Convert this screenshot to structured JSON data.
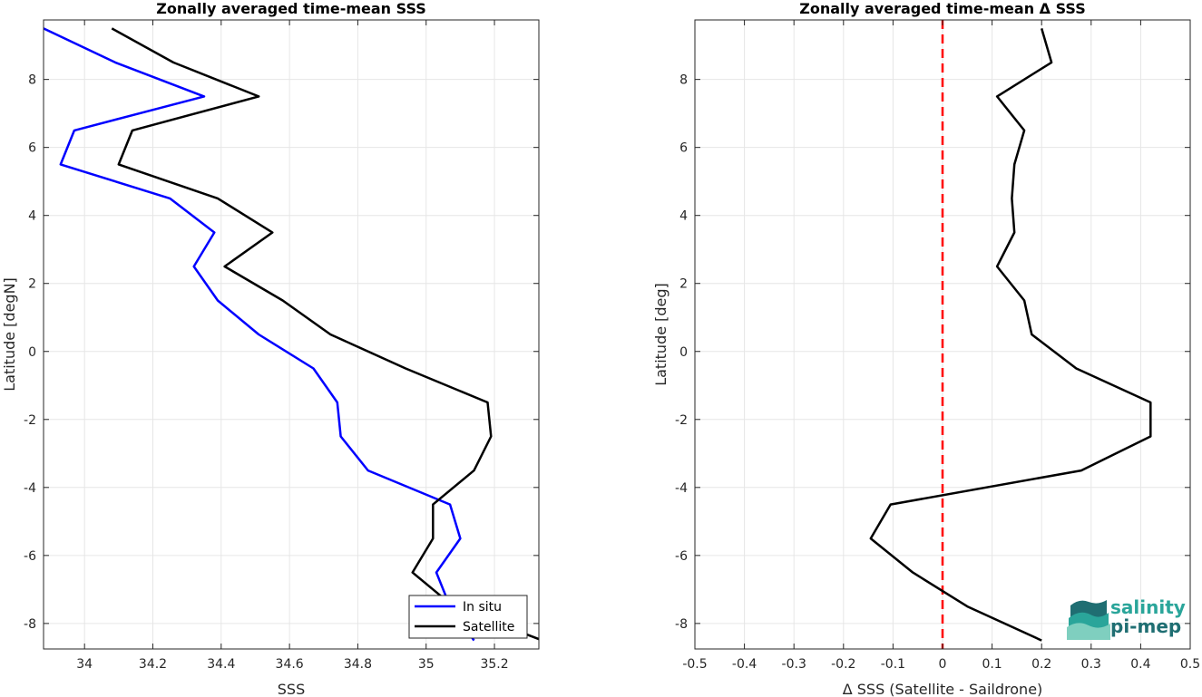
{
  "chart_data": [
    {
      "type": "line",
      "title": "Zonally averaged time-mean SSS",
      "xlabel": "SSS",
      "ylabel": "Latitude [degN]",
      "xlim": [
        33.88,
        35.33
      ],
      "ylim": [
        -8.75,
        9.75
      ],
      "xticks": [
        34,
        34.2,
        34.4,
        34.6,
        34.8,
        35,
        35.2
      ],
      "xtick_labels": [
        "34",
        "34.2",
        "34.4",
        "34.6",
        "34.8",
        "35",
        "35.2"
      ],
      "yticks": [
        -8,
        -6,
        -4,
        -2,
        0,
        2,
        4,
        6,
        8
      ],
      "ytick_labels": [
        "-8",
        "-6",
        "-4",
        "-2",
        "0",
        "2",
        "4",
        "6",
        "8"
      ],
      "grid": true,
      "legend": "bottom-right",
      "series": [
        {
          "name": "In situ",
          "color": "#0000ff",
          "x": [
            33.88,
            34.09,
            34.35,
            33.97,
            33.93,
            34.25,
            34.38,
            34.32,
            34.39,
            34.51,
            34.67,
            34.74,
            34.75,
            34.83,
            35.07,
            35.1,
            35.03,
            35.07,
            35.14
          ],
          "y": [
            9.5,
            8.5,
            7.5,
            6.5,
            5.5,
            4.5,
            3.5,
            2.5,
            1.5,
            0.5,
            -0.5,
            -1.5,
            -2.5,
            -3.5,
            -4.5,
            -5.5,
            -6.5,
            -7.5,
            -8.5
          ]
        },
        {
          "name": "Satellite",
          "color": "#000000",
          "x": [
            34.08,
            34.26,
            34.51,
            34.14,
            34.1,
            34.39,
            34.55,
            34.41,
            34.58,
            34.72,
            34.94,
            35.18,
            35.19,
            35.14,
            35.02,
            35.02,
            34.96,
            35.08,
            35.34
          ],
          "y": [
            9.5,
            8.5,
            7.5,
            6.5,
            5.5,
            4.5,
            3.5,
            2.5,
            1.5,
            0.5,
            -0.5,
            -1.5,
            -2.5,
            -3.5,
            -4.5,
            -5.5,
            -6.5,
            -7.5,
            -8.5
          ]
        }
      ]
    },
    {
      "type": "line",
      "title": "Zonally averaged time-mean Δ SSS",
      "xlabel": "Δ SSS (Satellite - Saildrone)",
      "ylabel": "Latitude [deg]",
      "xlim": [
        -0.5,
        0.5
      ],
      "ylim": [
        -8.75,
        9.75
      ],
      "xticks": [
        -0.5,
        -0.4,
        -0.3,
        -0.2,
        -0.1,
        0,
        0.1,
        0.2,
        0.3,
        0.4,
        0.5
      ],
      "xtick_labels": [
        "-0.5",
        "-0.4",
        "-0.3",
        "-0.2",
        "-0.1",
        "0",
        "0.1",
        "0.2",
        "0.3",
        "0.4",
        "0.5"
      ],
      "yticks": [
        -8,
        -6,
        -4,
        -2,
        0,
        2,
        4,
        6,
        8
      ],
      "ytick_labels": [
        "-8",
        "-6",
        "-4",
        "-2",
        "0",
        "2",
        "4",
        "6",
        "8"
      ],
      "grid": true,
      "reference_line": {
        "x": 0,
        "color": "#ff0000",
        "style": "dashed"
      },
      "series": [
        {
          "color": "#000000",
          "x": [
            0.2,
            0.22,
            0.11,
            0.165,
            0.145,
            0.14,
            0.145,
            0.11,
            0.165,
            0.18,
            0.27,
            0.42,
            0.42,
            0.28,
            -0.105,
            -0.145,
            -0.06,
            0.05,
            0.2
          ],
          "y": [
            9.5,
            8.5,
            7.5,
            6.5,
            5.5,
            4.5,
            3.5,
            2.5,
            1.5,
            0.5,
            -0.5,
            -1.5,
            -2.5,
            -3.5,
            -4.5,
            -5.5,
            -6.5,
            -7.5,
            -8.5
          ]
        }
      ]
    }
  ],
  "logo": {
    "line1": "salinity",
    "line2": "pi-mep",
    "colors": [
      "#2aa59a",
      "#1f6e72",
      "#7fcfbf"
    ]
  }
}
